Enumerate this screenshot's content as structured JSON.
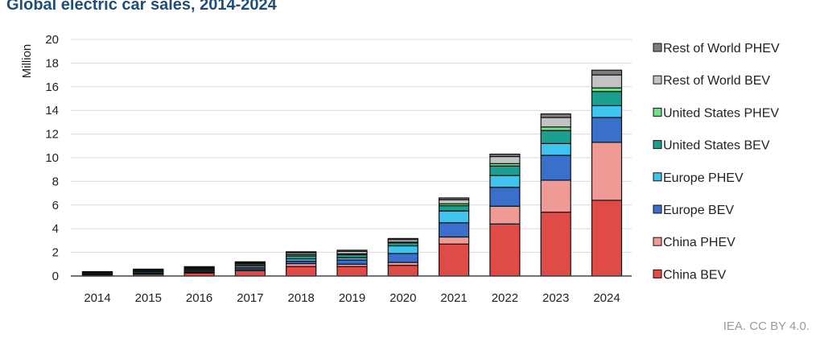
{
  "title": "Global electric car sales, 2014-2024",
  "credit": "IEA. CC BY 4.0.",
  "colors": {
    "China BEV": "#e04a47",
    "China PHEV": "#f09a96",
    "Europe BEV": "#3a6fcb",
    "Europe PHEV": "#3fc3ef",
    "United States BEV": "#1a9f90",
    "United States PHEV": "#6fe08c",
    "Rest of World BEV": "#c3c3c3",
    "Rest of World PHEV": "#7d7d7d",
    "edge": "#111111",
    "grid": "#d9d9d9"
  },
  "chart_data": {
    "type": "bar",
    "stacked": true,
    "title": "Global electric car sales, 2014-2024",
    "ylabel": "Million",
    "ylim": [
      0,
      20
    ],
    "yticks": [
      0,
      2,
      4,
      6,
      8,
      10,
      12,
      14,
      16,
      18,
      20
    ],
    "grid": true,
    "legend_position": "right",
    "categories": [
      "2014",
      "2015",
      "2016",
      "2017",
      "2018",
      "2019",
      "2020",
      "2021",
      "2022",
      "2023",
      "2024"
    ],
    "series": [
      {
        "name": "China BEV",
        "values": [
          0.05,
          0.15,
          0.25,
          0.45,
          0.8,
          0.8,
          0.9,
          2.7,
          4.4,
          5.4,
          6.4
        ]
      },
      {
        "name": "China PHEV",
        "values": [
          0.02,
          0.05,
          0.08,
          0.1,
          0.25,
          0.2,
          0.25,
          0.6,
          1.5,
          2.7,
          4.9
        ]
      },
      {
        "name": "Europe BEV",
        "values": [
          0.05,
          0.08,
          0.1,
          0.15,
          0.2,
          0.35,
          0.75,
          1.2,
          1.6,
          2.1,
          2.1
        ]
      },
      {
        "name": "Europe PHEV",
        "values": [
          0.05,
          0.1,
          0.1,
          0.15,
          0.2,
          0.2,
          0.65,
          1.0,
          1.0,
          1.0,
          1.0
        ]
      },
      {
        "name": "United States BEV",
        "values": [
          0.06,
          0.07,
          0.08,
          0.12,
          0.25,
          0.25,
          0.25,
          0.45,
          0.8,
          1.1,
          1.2
        ]
      },
      {
        "name": "United States PHEV",
        "values": [
          0.05,
          0.04,
          0.07,
          0.09,
          0.12,
          0.08,
          0.07,
          0.15,
          0.2,
          0.3,
          0.3
        ]
      },
      {
        "name": "Rest of World BEV",
        "values": [
          0.05,
          0.05,
          0.06,
          0.08,
          0.15,
          0.2,
          0.2,
          0.35,
          0.6,
          0.8,
          1.1
        ]
      },
      {
        "name": "Rest of World PHEV",
        "values": [
          0.04,
          0.04,
          0.05,
          0.06,
          0.08,
          0.1,
          0.1,
          0.15,
          0.2,
          0.3,
          0.4
        ]
      }
    ]
  }
}
